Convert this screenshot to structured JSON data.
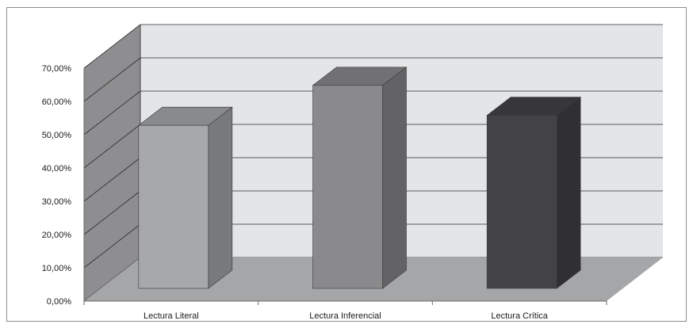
{
  "chart_data": {
    "type": "bar",
    "title": "",
    "xlabel": "",
    "ylabel": "",
    "categories": [
      "Lectura Literal",
      "Lectura Inferencial",
      "Lectura Crítica"
    ],
    "series": [
      {
        "values": [
          0.49,
          0.61,
          0.52
        ],
        "colors": [
          "#a7a8ab",
          "#8a8a8c",
          "#434345"
        ]
      }
    ],
    "ylim": [
      0,
      0.7
    ],
    "yticks": [
      0,
      0.1,
      0.2,
      0.3,
      0.4,
      0.5,
      0.6,
      0.7
    ],
    "ytick_labels": [
      "0,00%",
      "10,00%",
      "20,00%",
      "30,00%",
      "40,00%",
      "50,00%",
      "60,00%",
      "70,00%"
    ],
    "grid": true,
    "legend": "none",
    "style": "3d-column",
    "colors": {
      "back_wall": "#e4e5e7",
      "side_wall": "#8e8e90",
      "floor": "#a5a6a8",
      "gridline": "#2b2b2b"
    }
  }
}
